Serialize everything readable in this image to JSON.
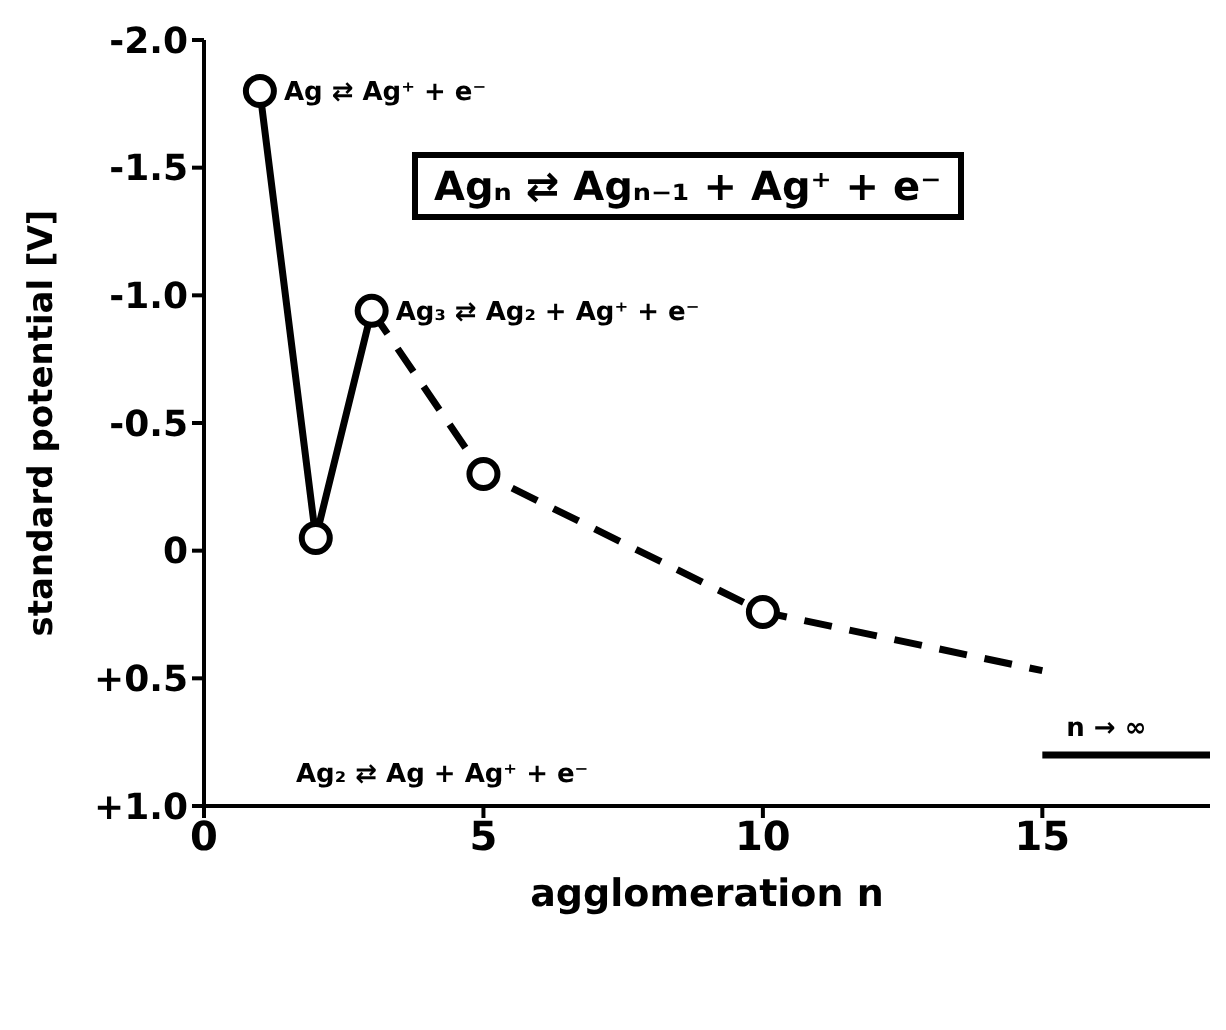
{
  "chart_data": {
    "type": "line",
    "xlabel": "agglomeration n",
    "ylabel": "standard potential [V]",
    "xlim": [
      0,
      18
    ],
    "xticks": [
      0,
      5,
      10,
      15
    ],
    "ylim": [
      1.0,
      -2.0
    ],
    "yticks": [
      {
        "value": -2.0,
        "label": "-2.0"
      },
      {
        "value": -1.5,
        "label": "-1.5"
      },
      {
        "value": -1.0,
        "label": "-1.0"
      },
      {
        "value": -0.5,
        "label": "-0.5"
      },
      0,
      {
        "value": 0.5,
        "label": "+0.5"
      },
      {
        "value": 1.0,
        "label": "+1.0"
      }
    ],
    "grid": false,
    "legend": false,
    "series": [
      {
        "color": "#000000",
        "line_style": "solid",
        "x": [
          1,
          2,
          3
        ],
        "values": [
          -1.8,
          -0.05,
          -0.94
        ]
      },
      {
        "color": "#000000",
        "line_style": "dashed",
        "x": [
          3,
          5,
          10,
          15
        ],
        "values": [
          -0.94,
          -0.3,
          0.24,
          0.47
        ]
      },
      {
        "color": "#000000",
        "line_style": "solid",
        "x": [
          15,
          18
        ],
        "values": [
          0.8,
          0.8
        ]
      },
      {
        "type": "scatter",
        "color": "#000000",
        "marker": "circle",
        "x": [
          1,
          2,
          3,
          5,
          10
        ],
        "values": [
          -1.8,
          -0.05,
          -0.94,
          -0.3,
          0.24
        ]
      }
    ],
    "annotations": [
      {
        "text": "Ag ⇄ Ag⁺ + e⁻",
        "x": 1,
        "y": -1.8
      },
      "Agₙ ⇄ Agₙ₋₁ + Ag⁺ + e⁻",
      {
        "text": "Ag₃ ⇄ Ag₂ + Ag⁺ + e⁻",
        "x": 3,
        "y": -0.94
      },
      "Ag₂ ⇄ Ag + Ag⁺ + e⁻",
      {
        "text": "n → ∞",
        "x": 15,
        "y": 0.8
      }
    ]
  }
}
